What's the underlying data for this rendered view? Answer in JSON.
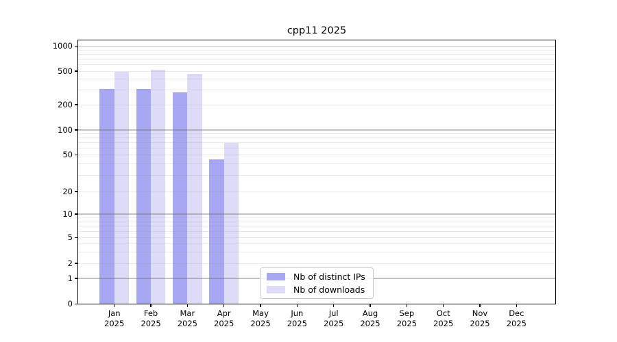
{
  "title": "cpp11 2025",
  "chart_data": {
    "type": "bar",
    "title": "cpp11 2025",
    "months": [
      "Jan",
      "Feb",
      "Mar",
      "Apr",
      "May",
      "Jun",
      "Jul",
      "Aug",
      "Sep",
      "Oct",
      "Nov",
      "Dec"
    ],
    "year_label": "2025",
    "series": [
      {
        "name": "Nb of distinct IPs",
        "color": "#a8a8f2",
        "values": [
          305,
          310,
          280,
          45,
          null,
          null,
          null,
          null,
          null,
          null,
          null,
          null
        ]
      },
      {
        "name": "Nb of downloads",
        "color": "#dcdcf6",
        "values": [
          490,
          520,
          465,
          70,
          null,
          null,
          null,
          null,
          null,
          null,
          null,
          null
        ]
      }
    ],
    "y_ticks_labeled": [
      1000,
      500,
      200,
      100,
      50,
      20,
      10,
      5,
      2,
      1,
      0
    ],
    "y_major_gridlines": [
      1000,
      100,
      10,
      1
    ],
    "y_minor_gridlines": [
      900,
      800,
      700,
      600,
      500,
      400,
      300,
      200,
      90,
      80,
      70,
      60,
      50,
      40,
      30,
      20,
      9,
      8,
      7,
      6,
      5,
      4,
      3,
      2
    ],
    "ylim": [
      0,
      1000
    ],
    "yscale": "symlog",
    "grid": true,
    "legend_position": "lower center"
  }
}
